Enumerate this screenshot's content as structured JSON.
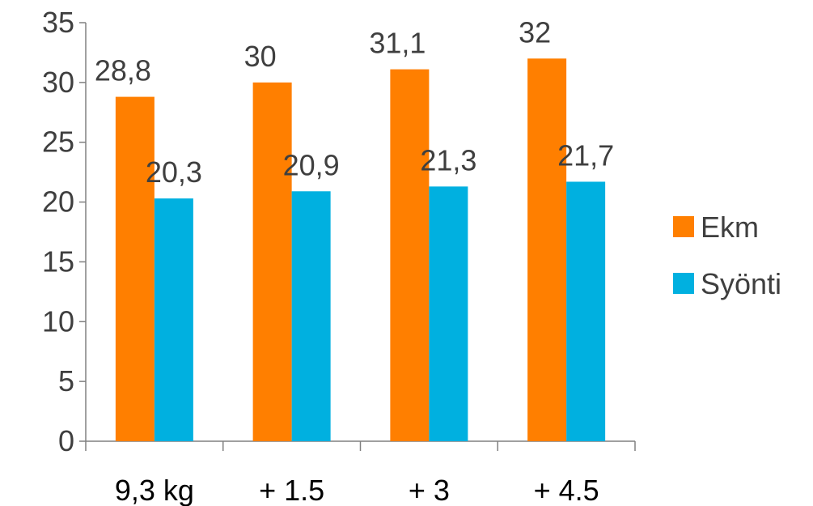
{
  "chart_data": {
    "type": "bar",
    "categories": [
      "9,3 kg",
      "+ 1.5",
      "+ 3",
      "+ 4.5"
    ],
    "series": [
      {
        "name": "Ekm",
        "values": [
          28.8,
          30,
          31.1,
          32
        ],
        "labels": [
          "28,8",
          "30",
          "31,1",
          "32"
        ],
        "color": "#ff7f00"
      },
      {
        "name": "Syönti",
        "values": [
          20.3,
          20.9,
          21.3,
          21.7
        ],
        "labels": [
          "20,3",
          "20,9",
          "21,3",
          "21,7"
        ],
        "color": "#00b0e0"
      }
    ],
    "ylim": [
      0,
      35
    ],
    "yticks": [
      0,
      5,
      10,
      15,
      20,
      25,
      30,
      35
    ],
    "grid": false,
    "legend": "right"
  }
}
